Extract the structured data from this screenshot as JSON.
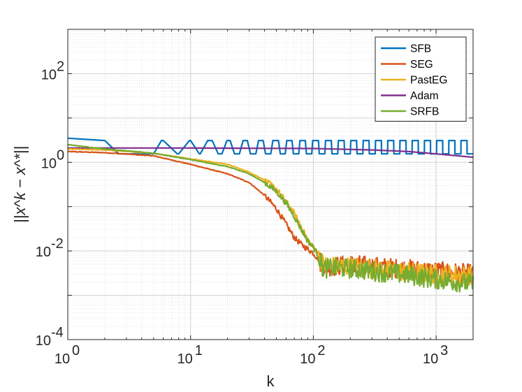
{
  "chart_data": {
    "type": "line",
    "title": "",
    "xlabel": "k",
    "ylabel": "||x^k − x^*||",
    "xscale": "log",
    "yscale": "log",
    "xlim": [
      1,
      2000
    ],
    "ylim": [
      0.0001,
      1000
    ],
    "grid": true,
    "minor_grid": true,
    "legend_position": "top-right",
    "x_ticks": [
      {
        "base": "10",
        "exp": "0",
        "value": 1
      },
      {
        "base": "10",
        "exp": "1",
        "value": 10
      },
      {
        "base": "10",
        "exp": "2",
        "value": 100
      },
      {
        "base": "10",
        "exp": "3",
        "value": 1000
      }
    ],
    "y_ticks": [
      {
        "base": "10",
        "exp": "-4",
        "value": 0.0001
      },
      {
        "base": "10",
        "exp": "-2",
        "value": 0.01
      },
      {
        "base": "10",
        "exp": "0",
        "value": 1
      },
      {
        "base": "10",
        "exp": "2",
        "value": 100
      }
    ],
    "series": [
      {
        "name": "SFB",
        "color": "#0072BD",
        "style": "oscillating",
        "x": [
          1,
          2,
          3,
          5,
          6,
          8,
          12,
          20,
          40,
          80,
          150,
          300,
          600,
          1000,
          2000
        ],
        "y": [
          3.5,
          3.1,
          1.55,
          1.55,
          3.1,
          1.55,
          3.1,
          1.55,
          3.1,
          1.55,
          3.1,
          1.55,
          3.1,
          1.55,
          3.1
        ],
        "band_low": 1.55,
        "band_high": 3.1
      },
      {
        "name": "SEG",
        "color": "#D95319",
        "x": [
          1,
          2,
          5,
          10,
          20,
          30,
          40,
          50,
          60,
          70,
          80,
          90,
          100,
          110,
          120,
          150,
          200,
          300,
          500,
          1000,
          2000
        ],
        "y": [
          1.75,
          1.65,
          1.4,
          0.9,
          0.55,
          0.35,
          0.18,
          0.09,
          0.04,
          0.02,
          0.014,
          0.011,
          0.009,
          0.0065,
          0.0045,
          0.0045,
          0.005,
          0.0045,
          0.004,
          0.0035,
          0.003
        ]
      },
      {
        "name": "PastEG",
        "color": "#EDB120",
        "x": [
          1,
          2,
          5,
          10,
          20,
          30,
          40,
          50,
          60,
          70,
          80,
          90,
          100,
          110,
          120,
          150,
          200,
          300,
          500,
          1000,
          2000
        ],
        "y": [
          2.0,
          1.9,
          1.6,
          1.2,
          0.9,
          0.6,
          0.4,
          0.25,
          0.13,
          0.07,
          0.035,
          0.018,
          0.012,
          0.009,
          0.005,
          0.0045,
          0.0045,
          0.004,
          0.0035,
          0.003,
          0.0028
        ]
      },
      {
        "name": "Adam",
        "color": "#7E2F8E",
        "x": [
          1,
          10,
          100,
          300,
          600,
          1000,
          1500,
          2000
        ],
        "y": [
          2.1,
          2.1,
          2.05,
          1.9,
          1.75,
          1.55,
          1.4,
          1.3
        ]
      },
      {
        "name": "SRFB",
        "color": "#77AC30",
        "x": [
          1,
          2,
          5,
          10,
          20,
          30,
          40,
          50,
          60,
          70,
          80,
          90,
          100,
          110,
          120,
          150,
          200,
          300,
          500,
          1000,
          2000
        ],
        "y": [
          2.5,
          2.0,
          1.6,
          1.15,
          0.8,
          0.55,
          0.35,
          0.22,
          0.12,
          0.06,
          0.03,
          0.017,
          0.012,
          0.008,
          0.004,
          0.0042,
          0.004,
          0.0035,
          0.003,
          0.0023,
          0.0018
        ]
      }
    ]
  }
}
